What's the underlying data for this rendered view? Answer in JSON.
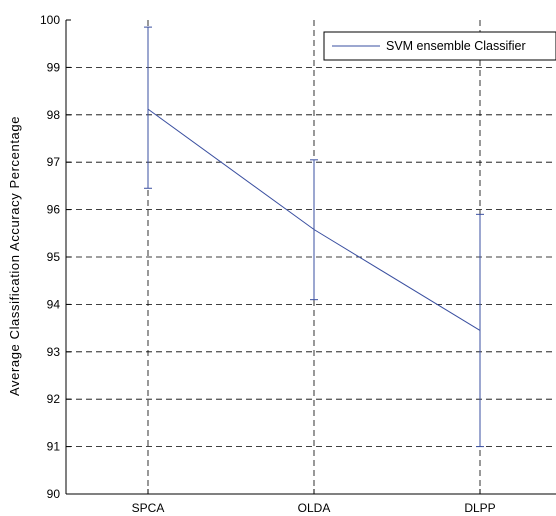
{
  "chart_data": {
    "type": "line",
    "categories": [
      "SPCA",
      "OLDA",
      "DLPP"
    ],
    "series": [
      {
        "name": "SVM ensemble Classifier",
        "values": [
          98.12,
          95.58,
          93.45
        ],
        "error_low": [
          96.45,
          94.1,
          91.0
        ],
        "error_high": [
          99.85,
          97.05,
          95.9
        ],
        "color": "#3a4fa0"
      }
    ],
    "xlabel": "",
    "ylabel": "Average Classification Accuracy Percentage",
    "ylim": [
      90,
      100
    ],
    "yticks": [
      "90",
      "91",
      "92",
      "93",
      "94",
      "95",
      "96",
      "97",
      "98",
      "99",
      "100"
    ],
    "grid": true,
    "legend_position": "top-right"
  }
}
